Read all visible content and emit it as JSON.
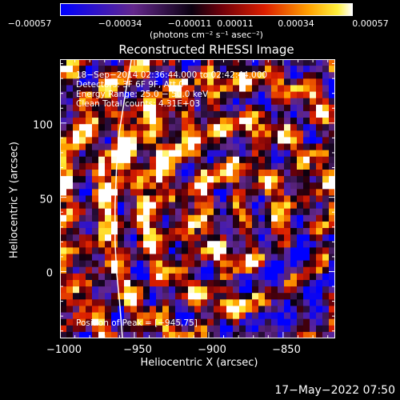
{
  "chart_data": {
    "type": "heatmap",
    "title": "Reconstructed RHESSI Image",
    "xlabel": "Heliocentric X (arcsec)",
    "ylabel": "Heliocentric Y (arcsec)",
    "xlim": [
      -1000,
      -815
    ],
    "ylim": [
      -45,
      143
    ],
    "x_ticks": [
      -1000,
      -950,
      -900,
      -850
    ],
    "x_tick_labels": [
      "−1000",
      "−950",
      "−900",
      "−850"
    ],
    "y_ticks": [
      0,
      50,
      100
    ],
    "y_tick_labels": [
      "0",
      "50",
      "100"
    ],
    "colorbar": {
      "range": [
        -0.00057,
        0.00057
      ],
      "ticks": [
        -0.00057,
        -0.00034,
        -0.00011,
        0.00011,
        0.00034,
        0.00057
      ],
      "tick_labels": [
        "−0.00057",
        "−0.00034",
        "−0.00011",
        "0.00011",
        "0.00034",
        "0.00057"
      ],
      "units": "(photons cm⁻² s⁻¹ asec⁻²)"
    },
    "annotations": {
      "time": "18−Sep−2014 02:36:44.000 to 02:42:44.000",
      "detectors": "Detectors: 3F 6F 9F, Att 0",
      "energy": "Energy Range: 25.0 − 50.0 keV",
      "clean": "Clean    Total counts: 4.31E+03",
      "peak": "Position of Peak = [−945,75]"
    },
    "peak": {
      "x": -945,
      "y": 75
    },
    "limb": [
      [
        -952,
        143
      ],
      [
        -956,
        120
      ],
      [
        -960,
        95
      ],
      [
        -962,
        70
      ],
      [
        -963,
        45
      ],
      [
        -963,
        20
      ],
      [
        -962,
        0
      ],
      [
        -960,
        -20
      ],
      [
        -958,
        -45
      ]
    ],
    "colors": {
      "background": "#000000",
      "text": "#ffffff",
      "limb": "#ffffff"
    }
  },
  "footer": {
    "timestamp": "17−May−2022 07:50"
  }
}
